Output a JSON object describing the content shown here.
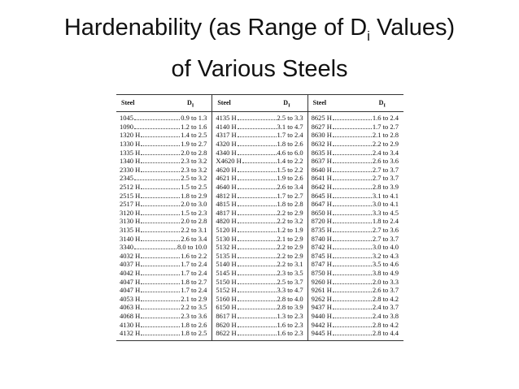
{
  "title": {
    "line1_before": "Hardenability (as Range of D",
    "line1_subscript": "i",
    "line1_after": " Values)",
    "line2": "of Various Steels"
  },
  "table": {
    "header": {
      "steel": "Steel",
      "d": "D",
      "d_subscript": "I"
    },
    "columns": [
      [
        {
          "steel": "1045",
          "range": "0.9 to 1.3"
        },
        {
          "steel": "1090",
          "range": "1.2 to 1.6"
        },
        {
          "steel": "1320 H",
          "range": "1.4 to 2.5"
        },
        {
          "steel": "1330 H",
          "range": "1.9 to 2.7"
        },
        {
          "steel": "1335 H",
          "range": "2.0 to 2.8"
        },
        {
          "steel": "1340 H",
          "range": "2.3 to 3.2"
        },
        {
          "steel": "2330 H",
          "range": "2.3 to 3.2"
        },
        {
          "steel": "2345",
          "range": "2.5 to 3.2"
        },
        {
          "steel": "2512 H",
          "range": "1.5 to 2.5"
        },
        {
          "steel": "2515 H",
          "range": "1.8 to 2.9"
        },
        {
          "steel": "2517 H",
          "range": "2.0 to 3.0"
        },
        {
          "steel": "3120 H",
          "range": "1.5 to 2.3"
        },
        {
          "steel": "3130 H",
          "range": "2.0 to 2.8"
        },
        {
          "steel": "3135 H",
          "range": "2.2 to 3.1"
        },
        {
          "steel": "3140 H",
          "range": "2.6 to 3.4"
        },
        {
          "steel": "3340",
          "range": "8.0 to 10.0"
        },
        {
          "steel": "4032 H",
          "range": "1.6 to 2.2"
        },
        {
          "steel": "4037 H",
          "range": "1.7 to 2.4"
        },
        {
          "steel": "4042 H",
          "range": "1.7 to 2.4"
        },
        {
          "steel": "4047 H",
          "range": "1.8 to 2.7"
        },
        {
          "steel": "4047 H",
          "range": "1.7 to 2.4"
        },
        {
          "steel": "4053 H",
          "range": "2.1 to 2.9"
        },
        {
          "steel": "4063 H",
          "range": "2.2 to 3.5"
        },
        {
          "steel": "4068 H",
          "range": "2.3 to 3.6"
        },
        {
          "steel": "4130 H",
          "range": "1.8 to 2.6"
        },
        {
          "steel": "4132 H",
          "range": "1.8 to 2.5"
        }
      ],
      [
        {
          "steel": "4135 H",
          "range": "2.5 to 3.3"
        },
        {
          "steel": "4140 H",
          "range": "3.1 to 4.7"
        },
        {
          "steel": "4317 H",
          "range": "1.7 to 2.4"
        },
        {
          "steel": "4320 H",
          "range": "1.8 to 2.6"
        },
        {
          "steel": "4340 H",
          "range": "4.6 to 6.0"
        },
        {
          "steel": "X4620 H",
          "range": "1.4 to 2.2"
        },
        {
          "steel": "4620 H",
          "range": "1.5 to 2.2"
        },
        {
          "steel": "4621 H",
          "range": "1.9 to 2.6"
        },
        {
          "steel": "4640 H",
          "range": "2.6 to 3.4"
        },
        {
          "steel": "4812 H",
          "range": "1.7 to 2.7"
        },
        {
          "steel": "4815 H",
          "range": "1.8 to 2.8"
        },
        {
          "steel": "4817 H",
          "range": "2.2 to 2.9"
        },
        {
          "steel": "4820 H",
          "range": "2.2 to 3.2"
        },
        {
          "steel": "5120 H",
          "range": "1.2 to 1.9"
        },
        {
          "steel": "5130 H",
          "range": "2.1 to 2.9"
        },
        {
          "steel": "5132 H",
          "range": "2.2 to 2.9"
        },
        {
          "steel": "5135 H",
          "range": "2.2 to 2.9"
        },
        {
          "steel": "5140 H",
          "range": "2.2 to 3.1"
        },
        {
          "steel": "5145 H",
          "range": "2.3 to 3.5"
        },
        {
          "steel": "5150 H",
          "range": "2.5 to 3.7"
        },
        {
          "steel": "5152 H",
          "range": "3.3 to 4.7"
        },
        {
          "steel": "5160 H",
          "range": "2.8 to 4.0"
        },
        {
          "steel": "6150 H",
          "range": "2.8 to 3.9"
        },
        {
          "steel": "8617 H",
          "range": "1.3 to 2.3"
        },
        {
          "steel": "8620 H",
          "range": "1.6 to 2.3"
        },
        {
          "steel": "8622 H",
          "range": "1.6 to 2.3"
        }
      ],
      [
        {
          "steel": "8625 H",
          "range": "1.6 to 2.4"
        },
        {
          "steel": "8627 H",
          "range": "1.7 to 2.7"
        },
        {
          "steel": "8630 H",
          "range": "2.1 to 2.8"
        },
        {
          "steel": "8632 H",
          "range": "2.2 to 2.9"
        },
        {
          "steel": "8635 H",
          "range": "2.4 to 3.4"
        },
        {
          "steel": "8637 H",
          "range": "2.6 to 3.6"
        },
        {
          "steel": "8640 H",
          "range": "2.7 to 3.7"
        },
        {
          "steel": "8641 H",
          "range": "2.7 to 3.7"
        },
        {
          "steel": "8642 H",
          "range": "2.8 to 3.9"
        },
        {
          "steel": "8645 H",
          "range": "3.1 to 4.1"
        },
        {
          "steel": "8647 H",
          "range": "3.0 to 4.1"
        },
        {
          "steel": "8650 H",
          "range": "3.3 to 4.5"
        },
        {
          "steel": "8720 H",
          "range": "1.8 to 2.4"
        },
        {
          "steel": "8735 H",
          "range": "2.7 to 3.6"
        },
        {
          "steel": "8740 H",
          "range": "2.7 to 3.7"
        },
        {
          "steel": "8742 H",
          "range": "3.0 to 4.0"
        },
        {
          "steel": "8745 H",
          "range": "3.2 to 4.3"
        },
        {
          "steel": "8747 H",
          "range": "3.5 to 4.6"
        },
        {
          "steel": "8750 H",
          "range": "3.8 to 4.9"
        },
        {
          "steel": "9260 H",
          "range": "2.0 to 3.3"
        },
        {
          "steel": "9261 H",
          "range": "2.6 to 3.7"
        },
        {
          "steel": "9262 H",
          "range": "2.8 to 4.2"
        },
        {
          "steel": "9437 H",
          "range": "2.4 to 3.7"
        },
        {
          "steel": "9440 H",
          "range": "2.4 to 3.8"
        },
        {
          "steel": "9442 H",
          "range": "2.8 to 4.2"
        },
        {
          "steel": "9445 H",
          "range": "2.8 to 4.4"
        }
      ]
    ]
  }
}
